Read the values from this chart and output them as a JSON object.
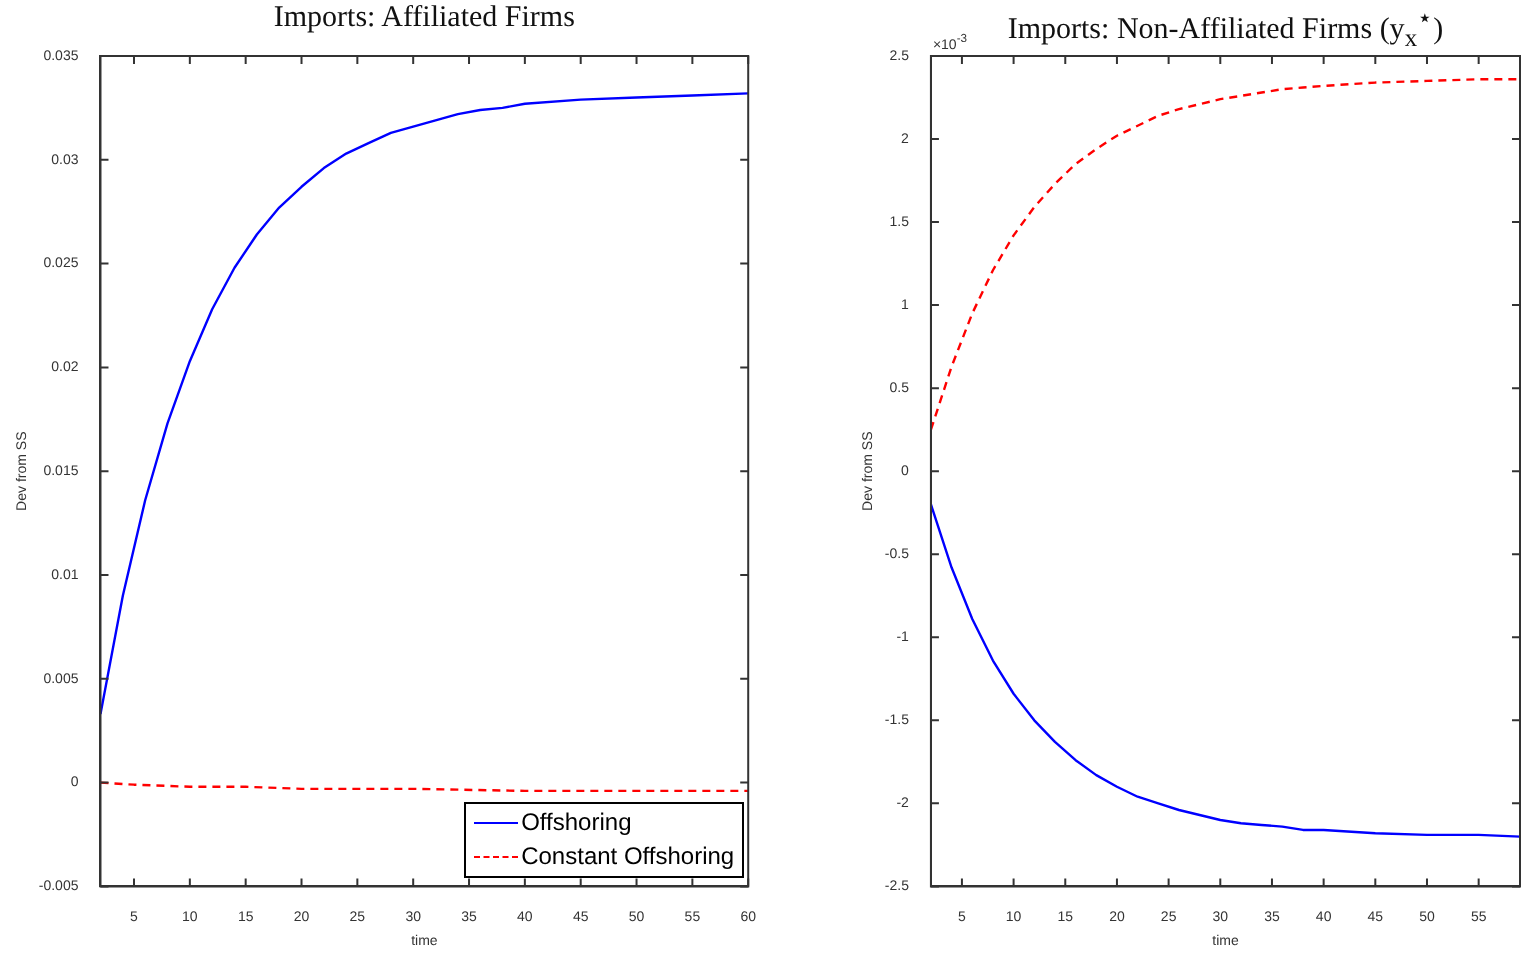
{
  "chart_data": [
    {
      "type": "line",
      "title": "Imports: Affiliated Firms",
      "xlabel": "time",
      "ylabel": "Dev from SS",
      "xlim": [
        2,
        60
      ],
      "xticks": [
        5,
        10,
        15,
        20,
        25,
        30,
        35,
        40,
        45,
        50,
        55,
        60
      ],
      "ylim": [
        -0.005,
        0.035
      ],
      "yticks": [
        -0.005,
        0,
        0.005,
        0.01,
        0.015,
        0.02,
        0.025,
        0.03,
        0.035
      ],
      "legend": "bottom right",
      "grid": false,
      "series": [
        {
          "name": "Offshoring",
          "color": "#0000ff",
          "line_style": "solid",
          "x": [
            2,
            4,
            6,
            8,
            10,
            12,
            14,
            16,
            18,
            20,
            22,
            24,
            26,
            28,
            30,
            32,
            34,
            36,
            38,
            40,
            45,
            50,
            55,
            60
          ],
          "values": [
            0.0033,
            0.009,
            0.0136,
            0.0173,
            0.0203,
            0.0228,
            0.0248,
            0.0264,
            0.0277,
            0.0287,
            0.0296,
            0.0303,
            0.0308,
            0.0313,
            0.0316,
            0.0319,
            0.0322,
            0.0324,
            0.0325,
            0.0327,
            0.0329,
            0.033,
            0.0331,
            0.0332
          ]
        },
        {
          "name": "Constant Offshoring",
          "color": "#ff0000",
          "line_style": "dashed",
          "x": [
            2,
            5,
            10,
            15,
            20,
            25,
            30,
            40,
            50,
            60
          ],
          "values": [
            0,
            -0.0001,
            -0.0002,
            -0.0002,
            -0.0003,
            -0.0003,
            -0.0003,
            -0.0004,
            -0.0004,
            -0.0004
          ]
        }
      ]
    },
    {
      "type": "line",
      "title": "Imports: Non-Affiliated Firms (y$_{x}$$^{⋆}$)",
      "xlabel": "time",
      "ylabel": "Dev from SS",
      "xlim": [
        2,
        59
      ],
      "xticks": [
        5,
        10,
        15,
        20,
        25,
        30,
        35,
        40,
        45,
        50,
        55
      ],
      "ylim": [
        -2.5,
        2.5
      ],
      "yticks": [
        -2.5,
        -2,
        -1.5,
        -1,
        -0.5,
        0,
        0.5,
        1,
        1.5,
        2,
        2.5
      ],
      "grid": false,
      "annotations": [
        "×10$^{-3}$"
      ],
      "series": [
        {
          "color": "#ff0000",
          "line_style": "dashed",
          "x": [
            2,
            4,
            6,
            8,
            10,
            12,
            14,
            16,
            18,
            20,
            22,
            24,
            26,
            28,
            30,
            32,
            34,
            36,
            38,
            40,
            45,
            50,
            55,
            59
          ],
          "values": [
            0.25,
            0.63,
            0.95,
            1.21,
            1.42,
            1.59,
            1.73,
            1.85,
            1.94,
            2.02,
            2.08,
            2.14,
            2.18,
            2.21,
            2.24,
            2.26,
            2.28,
            2.3,
            2.31,
            2.32,
            2.34,
            2.35,
            2.36,
            2.36
          ]
        },
        {
          "color": "#0000ff",
          "line_style": "solid",
          "x": [
            2,
            4,
            6,
            8,
            10,
            12,
            14,
            16,
            18,
            20,
            22,
            24,
            26,
            28,
            30,
            32,
            34,
            36,
            38,
            40,
            45,
            50,
            55,
            59
          ],
          "values": [
            -0.2,
            -0.58,
            -0.89,
            -1.14,
            -1.34,
            -1.5,
            -1.63,
            -1.74,
            -1.83,
            -1.9,
            -1.96,
            -2,
            -2.04,
            -2.07,
            -2.1,
            -2.12,
            -2.13,
            -2.14,
            -2.16,
            -2.16,
            -2.18,
            -2.19,
            -2.19,
            -2.2
          ]
        }
      ]
    }
  ]
}
